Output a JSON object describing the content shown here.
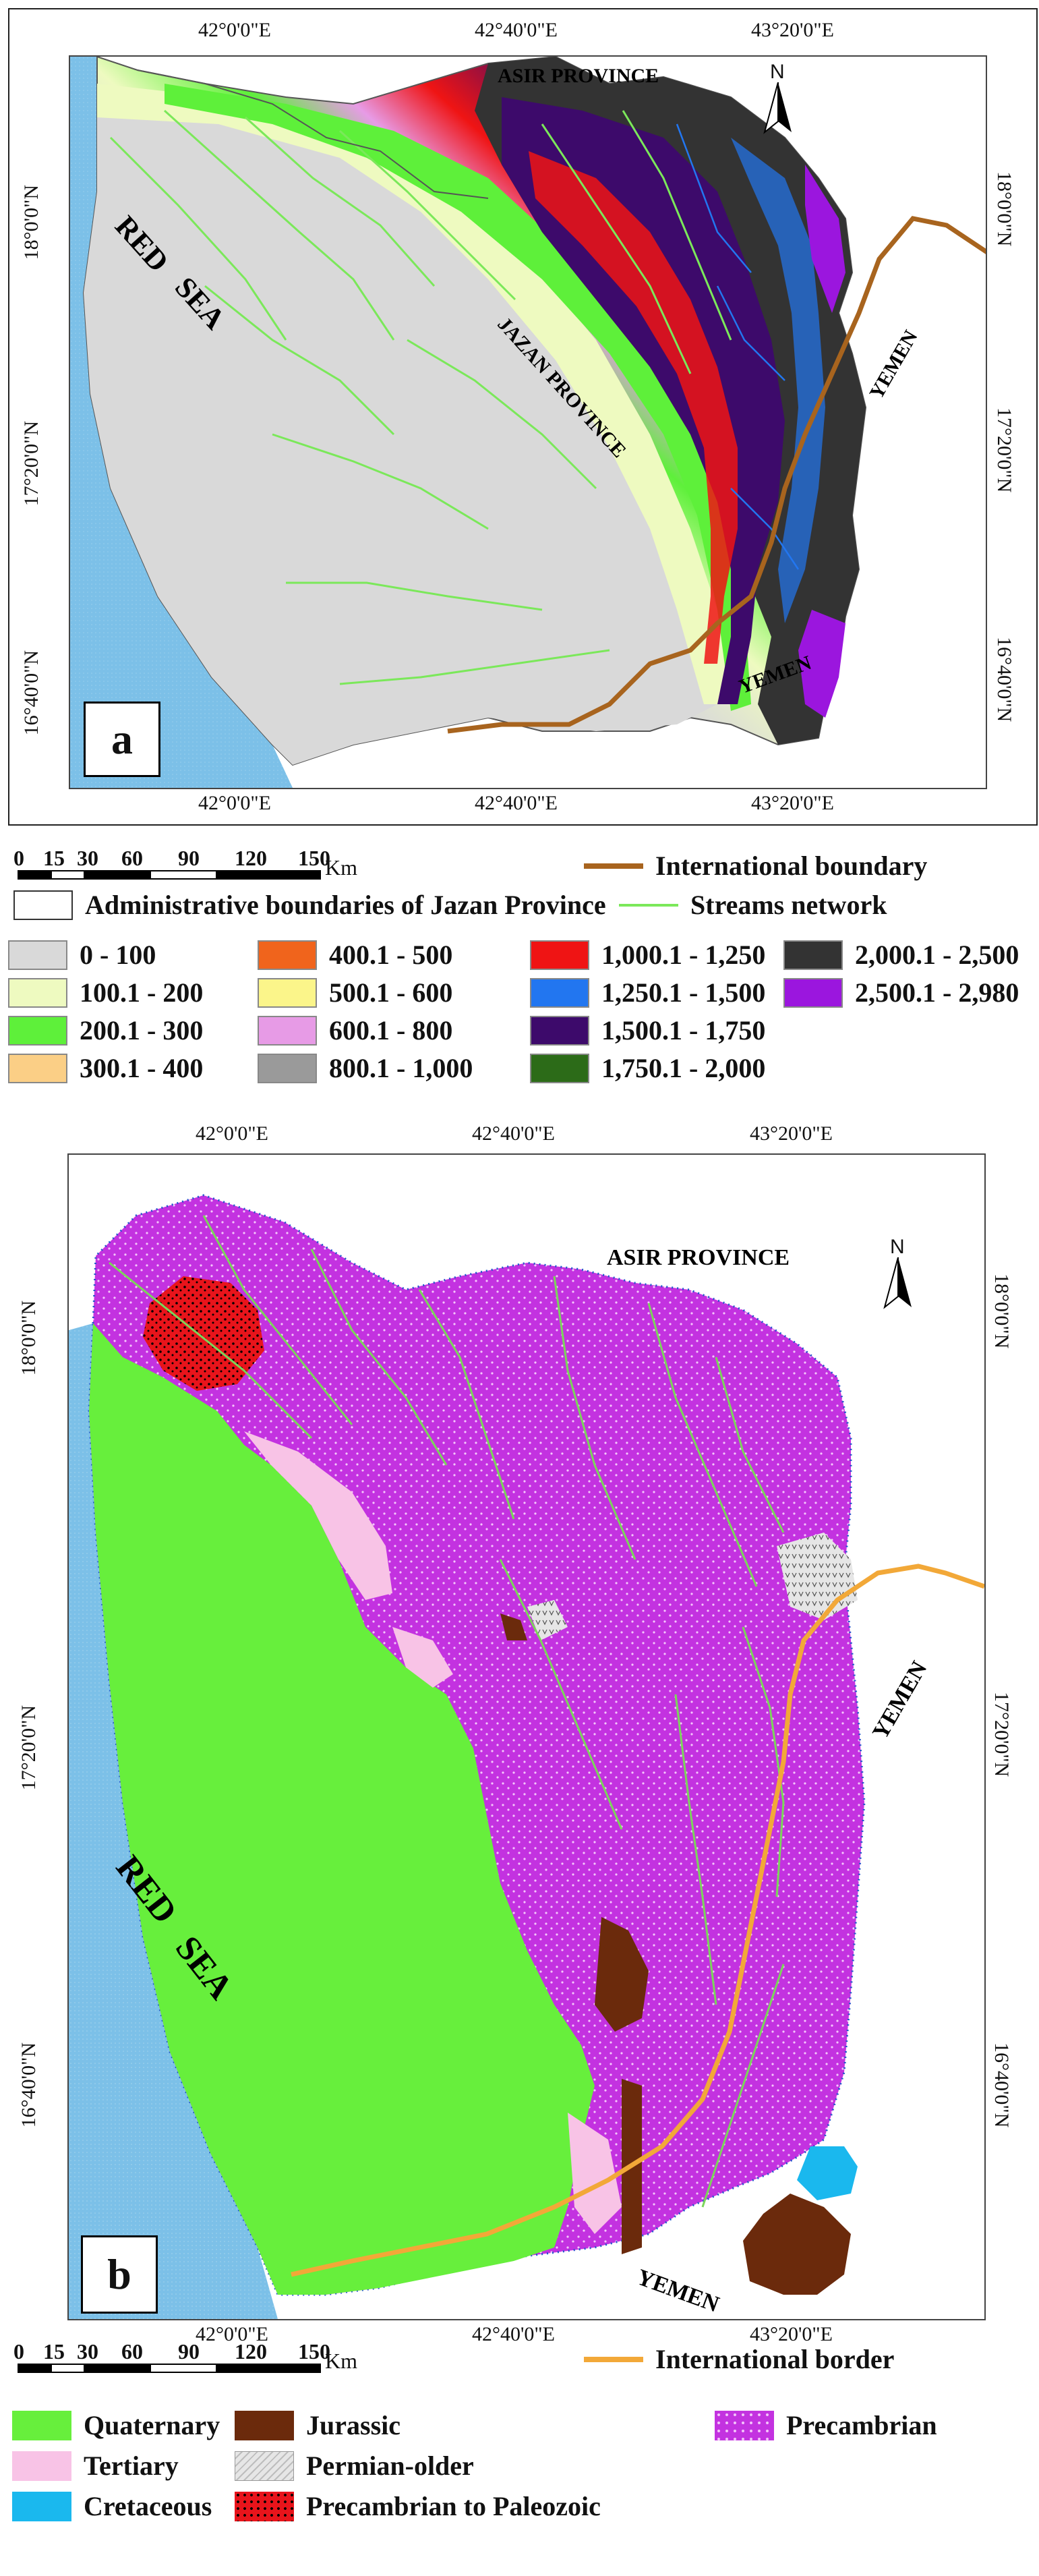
{
  "map_a": {
    "panel_label": "a",
    "top_ticks": [
      "42°0'0\"E",
      "42°40'0\"E",
      "43°20'0\"E"
    ],
    "bottom_ticks": [
      "42°0'0\"E",
      "42°40'0\"E",
      "43°20'0\"E"
    ],
    "left_ticks": [
      "18°0'0\"N",
      "17°20'0\"N",
      "16°40'0\"N"
    ],
    "right_ticks": [
      "18°0'0\"N",
      "17°20'0\"N",
      "16°40'0\"N"
    ],
    "places": {
      "asir": "ASIR PROVINCE",
      "jazan": "JAZAN PROVINCE",
      "red": "RED",
      "sea": "SEA",
      "yemen_east": "YEMEN",
      "yemen_south": "YEMEN"
    },
    "north": "N",
    "scale": {
      "ticks": [
        "0",
        "15",
        "30",
        "60",
        "90",
        "120",
        "150"
      ],
      "unit": "Km"
    },
    "legend_lines": {
      "international_boundary": "International boundary",
      "admin_boundaries": "Administrative boundaries of Jazan Province",
      "streams": "Streams network"
    },
    "elevation_classes": [
      {
        "label": "0 - 100",
        "color": "#d9d9d9"
      },
      {
        "label": "100.1 - 200",
        "color": "#eefac0"
      },
      {
        "label": "200.1 - 300",
        "color": "#5ef03a"
      },
      {
        "label": "300.1 - 400",
        "color": "#fbcf86"
      },
      {
        "label": "400.1 - 500",
        "color": "#f0641c"
      },
      {
        "label": "500.1 - 600",
        "color": "#fbf58a"
      },
      {
        "label": "600.1 - 800",
        "color": "#e79be6"
      },
      {
        "label": "800.1 - 1,000",
        "color": "#9a9a9a"
      },
      {
        "label": "1,000.1 - 1,250",
        "color": "#ef1414"
      },
      {
        "label": "1,250.1 - 1,500",
        "color": "#2276f0"
      },
      {
        "label": "1,500.1 - 1,750",
        "color": "#3d0a6b"
      },
      {
        "label": "1,750.1 - 2,000",
        "color": "#2c6b18"
      },
      {
        "label": "2,000.1 - 2,500",
        "color": "#333333"
      },
      {
        "label": "2,500.1 - 2,980",
        "color": "#9b16de"
      }
    ],
    "colors": {
      "sea": "#7cc0e8",
      "boundary": "#a8641e",
      "stream": "#7be85a",
      "outside": "#ffffff"
    }
  },
  "map_b": {
    "panel_label": "b",
    "top_ticks": [
      "42°0'0\"E",
      "42°40'0\"E",
      "43°20'0\"E"
    ],
    "bottom_ticks": [
      "42°0'0\"E",
      "42°40'0\"E",
      "43°20'0\"E"
    ],
    "left_ticks": [
      "18°0'0\"N",
      "17°20'0\"N",
      "16°40'0\"N"
    ],
    "right_ticks": [
      "18°0'0\"N",
      "17°20'0\"N",
      "16°40'0\"N"
    ],
    "places": {
      "asir": "ASIR PROVINCE",
      "red": "RED",
      "sea": "SEA",
      "yemen_east": "YEMEN",
      "yemen_south": "YEMEN"
    },
    "north": "N",
    "scale": {
      "ticks": [
        "0",
        "15",
        "30",
        "60",
        "90",
        "120",
        "150"
      ],
      "unit": "Km"
    },
    "legend_lines": {
      "international_border": "International border"
    },
    "geology_classes": [
      {
        "label": "Quaternary",
        "color": "#67ef3c"
      },
      {
        "label": "Tertiary",
        "color": "#f8c3e6"
      },
      {
        "label": "Cretaceous",
        "color": "#1ab8ee"
      },
      {
        "label": "Jurassic",
        "color": "#6b2a0c"
      },
      {
        "label": "Permian-older",
        "color": "#e6e6e6"
      },
      {
        "label": "Precambrian to Paleozoic",
        "color": "#e8141b"
      },
      {
        "label": "Precambrian",
        "color": "#c332e0"
      }
    ],
    "colors": {
      "sea": "#7cc0e8",
      "border": "#f2a838",
      "stream": "#7bd65a"
    }
  }
}
